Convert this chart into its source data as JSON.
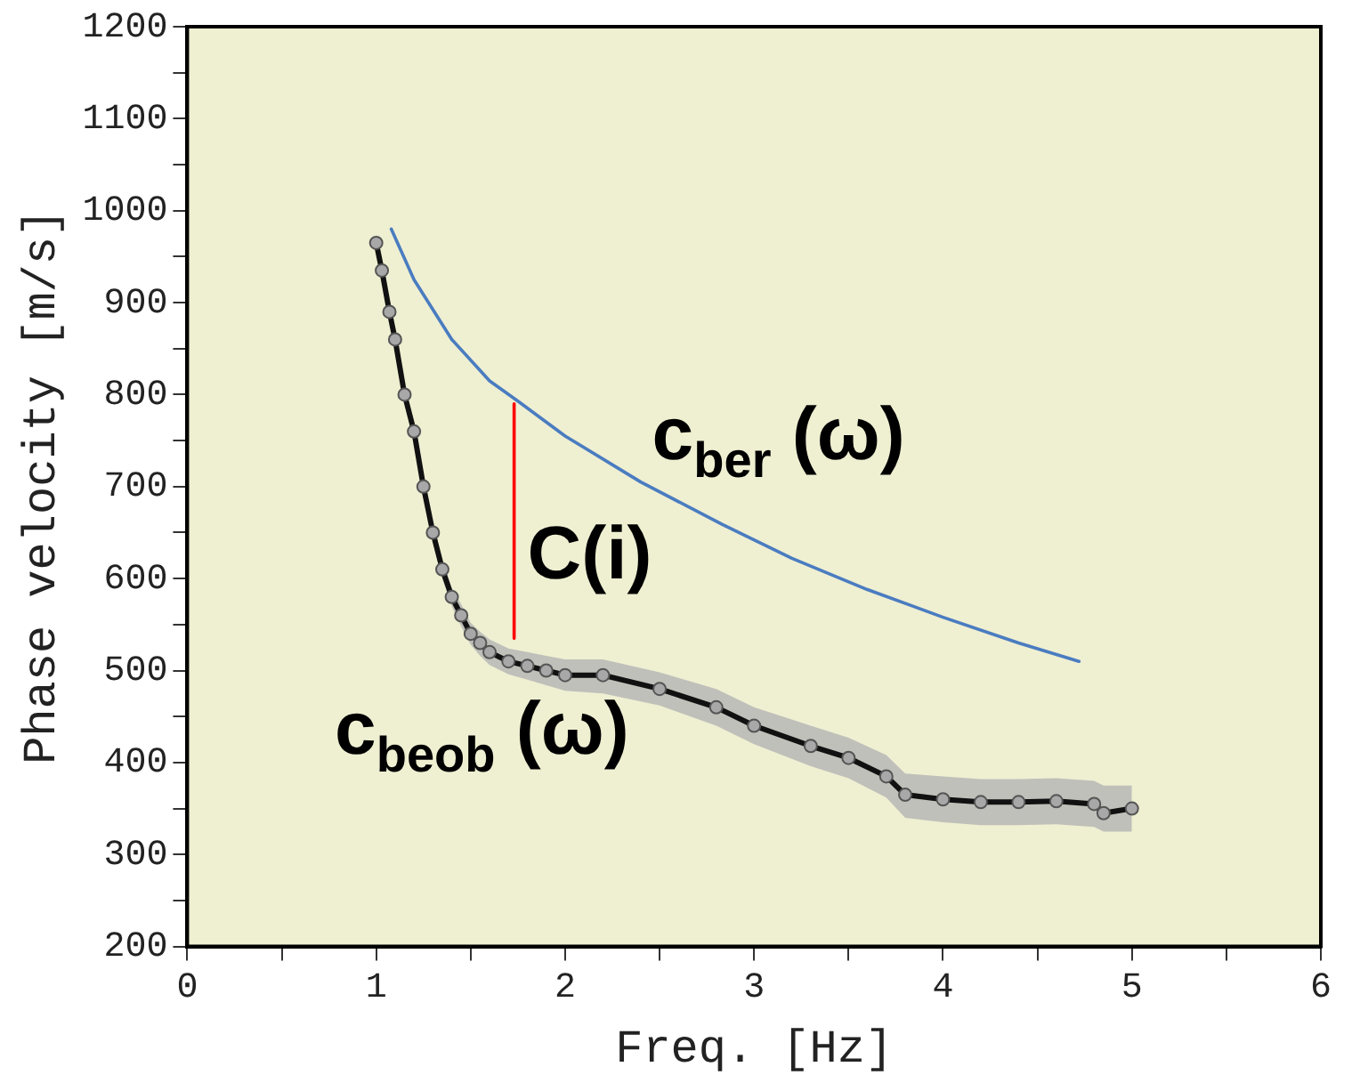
{
  "chart_data": {
    "type": "line",
    "xlabel": "Freq. [Hz]",
    "ylabel": "Phase velocity [m/s]",
    "xlim": [
      0,
      6
    ],
    "ylim": [
      200,
      1200
    ],
    "xticks": [
      0,
      {
        "value": 0.5,
        "label": null
      },
      1,
      {
        "value": 1.5,
        "label": null
      },
      2,
      {
        "value": 2.5,
        "label": null
      },
      3,
      {
        "value": 3.5,
        "label": null
      },
      4,
      {
        "value": 4.5,
        "label": null
      },
      5,
      {
        "value": 5.5,
        "label": null
      },
      6
    ],
    "yticks": [
      200,
      {
        "value": 250,
        "label": null
      },
      300,
      {
        "value": 350,
        "label": null
      },
      400,
      {
        "value": 450,
        "label": null
      },
      500,
      {
        "value": 550,
        "label": null
      },
      600,
      {
        "value": 650,
        "label": null
      },
      700,
      {
        "value": 750,
        "label": null
      },
      800,
      {
        "value": 850,
        "label": null
      },
      900,
      {
        "value": 950,
        "label": null
      },
      1000,
      {
        "value": 1050,
        "label": null
      },
      1100,
      {
        "value": 1150,
        "label": null
      },
      1200
    ],
    "grid": false,
    "legend": false,
    "series": [
      {
        "color": "#111111",
        "marker": "circle",
        "x": [
          1.0,
          1.03,
          1.07,
          1.1,
          1.15,
          1.2,
          1.25,
          1.3,
          1.35,
          1.4,
          1.45,
          1.5,
          1.55,
          1.6,
          1.7,
          1.8,
          1.9,
          2.0,
          2.2,
          2.5,
          2.8,
          3.0,
          3.3,
          3.5,
          3.7,
          3.8,
          4.0,
          4.2,
          4.4,
          4.6,
          4.8,
          4.85,
          5.0
        ],
        "values": [
          965,
          935,
          890,
          860,
          800,
          760,
          700,
          650,
          610,
          580,
          560,
          540,
          530,
          520,
          510,
          505,
          500,
          495,
          495,
          480,
          460,
          440,
          418,
          405,
          385,
          365,
          360,
          357,
          357,
          358,
          355,
          345,
          350
        ],
        "lower": [
          960,
          925,
          880,
          850,
          790,
          750,
          690,
          640,
          600,
          570,
          548,
          528,
          516,
          506,
          496,
          490,
          484,
          478,
          475,
          462,
          440,
          420,
          396,
          383,
          362,
          340,
          335,
          332,
          332,
          333,
          330,
          325,
          325
        ],
        "upper": [
          975,
          945,
          900,
          870,
          810,
          770,
          710,
          660,
          620,
          590,
          572,
          552,
          542,
          534,
          524,
          520,
          516,
          512,
          512,
          498,
          480,
          460,
          440,
          427,
          408,
          388,
          385,
          382,
          382,
          383,
          380,
          375,
          375
        ]
      },
      {
        "color": "#4a7cc0",
        "marker": "none",
        "x": [
          1.08,
          1.2,
          1.4,
          1.6,
          1.75,
          2.0,
          2.4,
          2.83,
          3.2,
          3.6,
          4.0,
          4.4,
          4.72
        ],
        "values": [
          980,
          925,
          860,
          815,
          793,
          755,
          705,
          659,
          622,
          588,
          558,
          530,
          510
        ]
      },
      {
        "color": "#ff0000",
        "marker": "none",
        "x": [
          1.73,
          1.73
        ],
        "values": [
          790,
          535
        ]
      }
    ],
    "annotations": [
      "c$_{ber}$ (ω)",
      "C(i)",
      "c$_{beob}$ (ω)"
    ]
  }
}
